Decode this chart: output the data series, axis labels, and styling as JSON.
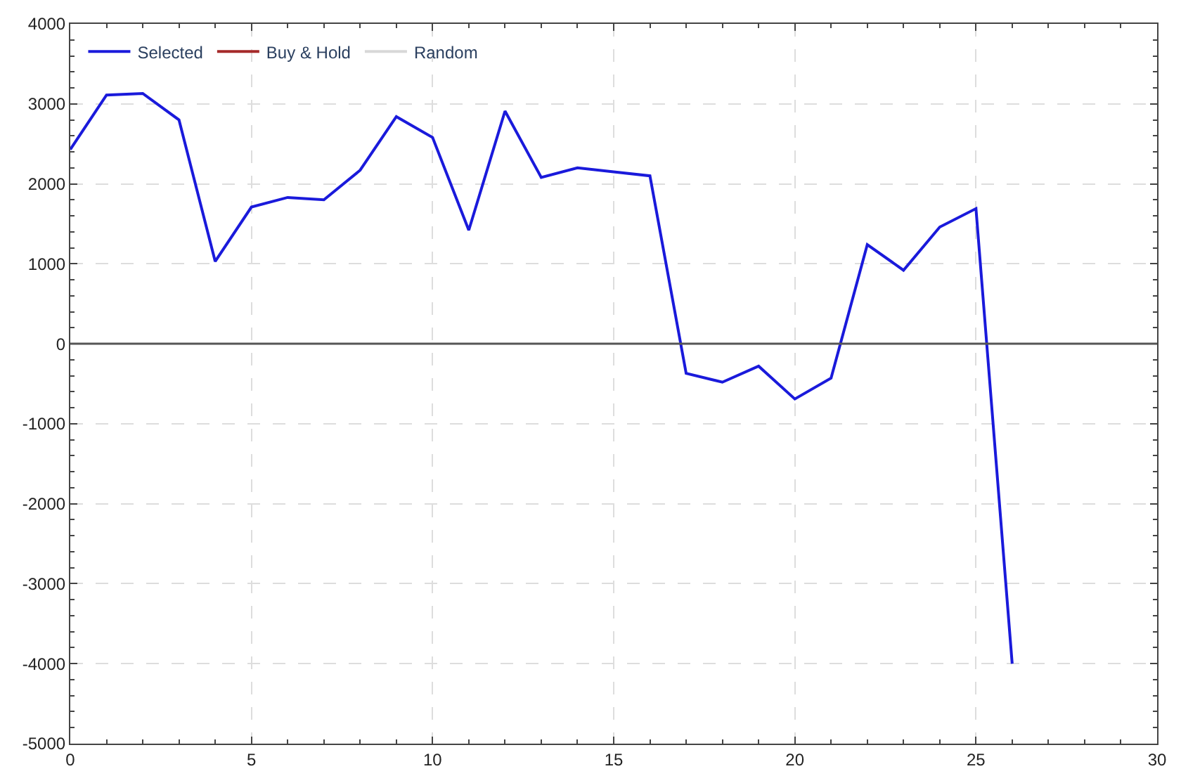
{
  "chart_data": {
    "type": "line",
    "x": [
      0,
      1,
      2,
      3,
      4,
      5,
      6,
      7,
      8,
      9,
      10,
      11,
      12,
      13,
      14,
      15,
      16,
      17,
      18,
      19,
      20,
      21,
      22,
      23,
      24,
      25,
      26
    ],
    "series": [
      {
        "name": "Selected",
        "color": "#1a1adb",
        "values": [
          2430,
          3110,
          3130,
          2800,
          1030,
          1710,
          1830,
          1800,
          2170,
          2840,
          2580,
          1420,
          2910,
          2080,
          2200,
          2150,
          2100,
          -370,
          -480,
          -280,
          -690,
          -430,
          1240,
          920,
          1460,
          1690,
          -4000
        ]
      },
      {
        "name": "Buy & Hold",
        "color": "#a52a2a",
        "values": [
          null,
          null,
          null,
          null,
          null,
          null,
          null,
          null,
          null,
          null,
          null,
          null,
          null,
          null,
          null,
          null,
          null,
          null,
          null,
          null,
          null,
          null,
          null,
          null,
          null,
          null,
          null
        ]
      },
      {
        "name": "Random",
        "color": "#d8d8d8",
        "values": [
          null,
          null,
          null,
          null,
          null,
          null,
          null,
          null,
          null,
          null,
          null,
          null,
          null,
          null,
          null,
          null,
          null,
          null,
          null,
          null,
          null,
          null,
          null,
          null,
          null,
          null,
          null
        ]
      }
    ],
    "xlim": [
      0,
      30
    ],
    "xticks": [
      0,
      5,
      10,
      15,
      20,
      25,
      30
    ],
    "ylim": [
      -5000,
      4000
    ],
    "yticks": [
      -5000,
      -4000,
      -3000,
      -2000,
      -1000,
      0,
      1000,
      2000,
      3000,
      4000
    ],
    "ref_lines": [
      {
        "axis": "y",
        "value": 0,
        "color": "#555555"
      }
    ],
    "grid": true,
    "legend": "top left",
    "line_style": "solid",
    "marker": "none"
  }
}
